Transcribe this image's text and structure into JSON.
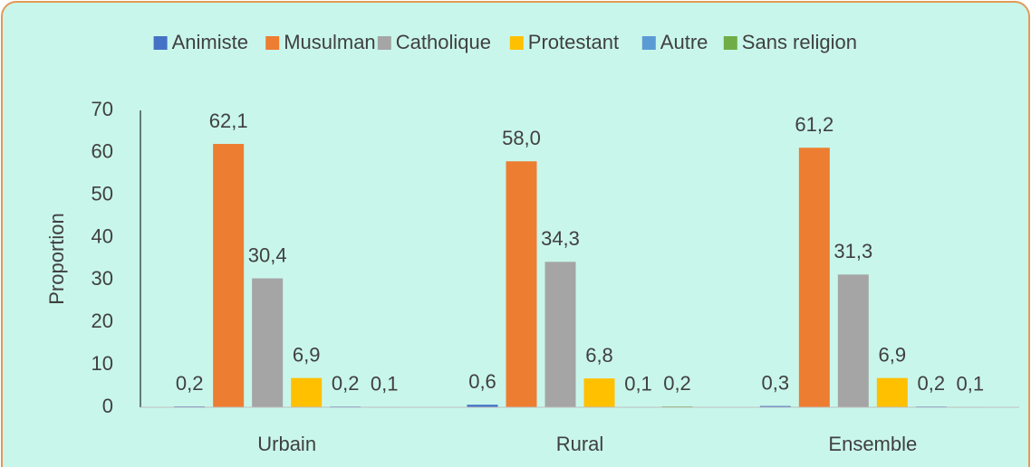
{
  "chart_data": {
    "type": "bar",
    "categories": [
      "Urbain",
      "Rural",
      "Ensemble"
    ],
    "y_label": "Proportion",
    "series": [
      {
        "name": "Animiste",
        "color": "#4472c4",
        "values": [
          0.2,
          0.6,
          0.3
        ],
        "value_labels": [
          "0,2",
          "0,6",
          "0,3"
        ]
      },
      {
        "name": "Musulman",
        "color": "#ed7d31",
        "values": [
          62.1,
          58.0,
          61.2
        ],
        "value_labels": [
          "62,1",
          "58,0",
          "61,2"
        ]
      },
      {
        "name": "Catholique",
        "color": "#a5a5a5",
        "values": [
          30.4,
          34.3,
          31.3
        ],
        "value_labels": [
          "30,4",
          "34,3",
          "31,3"
        ]
      },
      {
        "name": "Protestant",
        "color": "#ffc000",
        "values": [
          6.9,
          6.8,
          6.9
        ],
        "value_labels": [
          "6,9",
          "6,8",
          "6,9"
        ]
      },
      {
        "name": "Autre",
        "color": "#5b9bd5",
        "values": [
          0.2,
          0.1,
          0.2
        ],
        "value_labels": [
          "0,2",
          "0,1",
          "0,2"
        ]
      },
      {
        "name": "Sans religion",
        "color": "#70ad47",
        "values": [
          0.1,
          0.2,
          0.1
        ],
        "value_labels": [
          "0,1",
          "0,2",
          "0,1"
        ]
      }
    ],
    "ylim": [
      0,
      70
    ],
    "yticks": [
      0,
      10,
      20,
      30,
      40,
      50,
      60,
      70
    ],
    "grid": false,
    "legend": "top"
  }
}
